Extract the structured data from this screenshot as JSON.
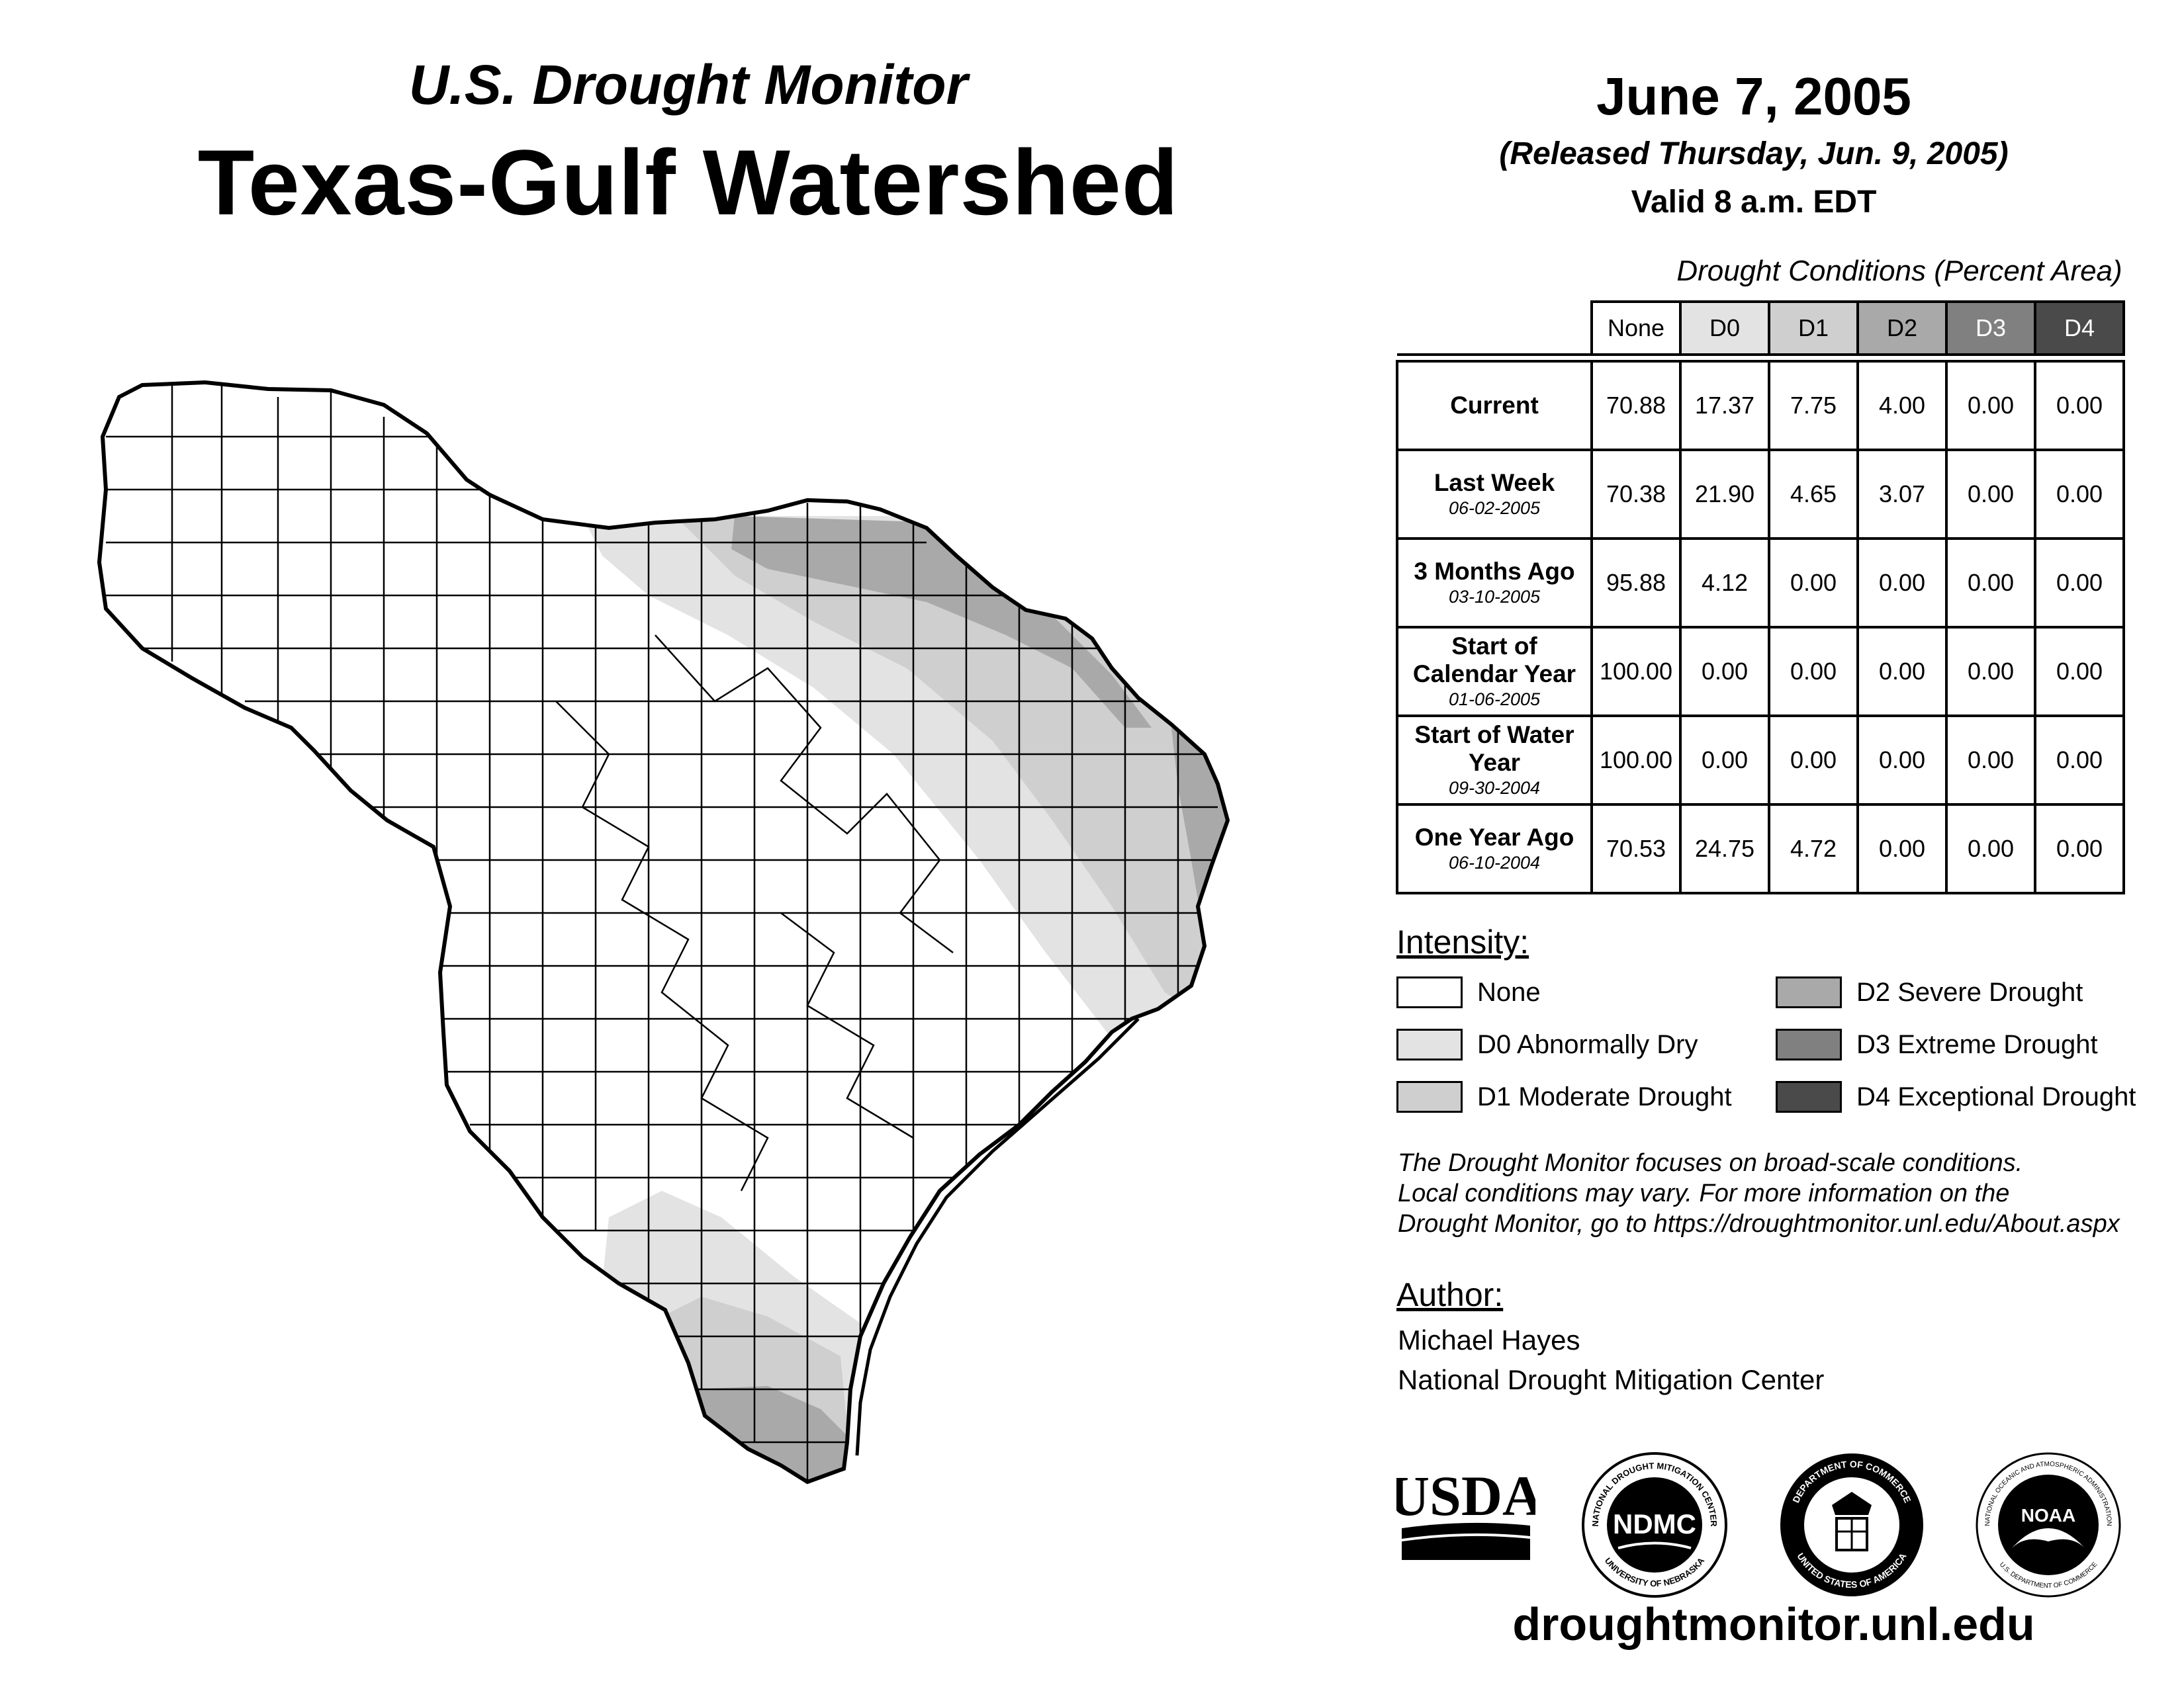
{
  "header": {
    "subtitle": "U.S. Drought Monitor",
    "title": "Texas-Gulf Watershed"
  },
  "date_block": {
    "date": "June 7, 2005",
    "released": "(Released Thursday, Jun. 9, 2005)",
    "valid": "Valid 8 a.m. EDT"
  },
  "table": {
    "caption": "Drought Conditions (Percent Area)",
    "columns": [
      "None",
      "D0",
      "D1",
      "D2",
      "D3",
      "D4"
    ],
    "column_colors": [
      "#ffffff",
      "#e3e3e3",
      "#cfcfcf",
      "#a9a9a9",
      "#808080",
      "#4a4a4a"
    ],
    "column_text_colors": [
      "#000000",
      "#000000",
      "#000000",
      "#000000",
      "#ffffff",
      "#ffffff"
    ],
    "rows": [
      {
        "label": "Current",
        "date": "",
        "values": [
          "70.88",
          "17.37",
          "7.75",
          "4.00",
          "0.00",
          "0.00"
        ]
      },
      {
        "label": "Last Week",
        "date": "06-02-2005",
        "values": [
          "70.38",
          "21.90",
          "4.65",
          "3.07",
          "0.00",
          "0.00"
        ]
      },
      {
        "label": "3 Months Ago",
        "date": "03-10-2005",
        "values": [
          "95.88",
          "4.12",
          "0.00",
          "0.00",
          "0.00",
          "0.00"
        ]
      },
      {
        "label": "Start of Calendar Year",
        "date": "01-06-2005",
        "values": [
          "100.00",
          "0.00",
          "0.00",
          "0.00",
          "0.00",
          "0.00"
        ]
      },
      {
        "label": "Start of Water Year",
        "date": "09-30-2004",
        "values": [
          "100.00",
          "0.00",
          "0.00",
          "0.00",
          "0.00",
          "0.00"
        ]
      },
      {
        "label": "One Year Ago",
        "date": "06-10-2004",
        "values": [
          "70.53",
          "24.75",
          "4.72",
          "0.00",
          "0.00",
          "0.00"
        ]
      }
    ]
  },
  "legend": {
    "title": "Intensity:",
    "items": [
      {
        "label": "None",
        "color": "#ffffff"
      },
      {
        "label": "D0 Abnormally Dry",
        "color": "#e3e3e3"
      },
      {
        "label": "D1 Moderate Drought",
        "color": "#cfcfcf"
      },
      {
        "label": "D2 Severe Drought",
        "color": "#a9a9a9"
      },
      {
        "label": "D3 Extreme Drought",
        "color": "#808080"
      },
      {
        "label": "D4 Exceptional Drought",
        "color": "#4a4a4a"
      }
    ]
  },
  "disclaimer": {
    "line1": "The Drought Monitor focuses on broad-scale conditions.",
    "line2": "Local conditions may vary. For more information on the",
    "line3": "Drought Monitor, go to https://droughtmonitor.unl.edu/About.aspx"
  },
  "author": {
    "title": "Author:",
    "name": "Michael Hayes",
    "org": "National Drought Mitigation Center"
  },
  "logos": {
    "usda": "USDA",
    "ndmc": "NDMC",
    "ndmc_ring_top": "NATIONAL DROUGHT MITIGATION CENTER",
    "ndmc_ring_bottom": "UNIVERSITY OF NEBRASKA",
    "doc_ring_top": "DEPARTMENT OF COMMERCE",
    "doc_ring_bottom": "UNITED STATES OF AMERICA",
    "noaa": "NOAA",
    "noaa_ring_top": "NATIONAL OCEANIC AND ATMOSPHERIC ADMINISTRATION",
    "noaa_ring_bottom": "U.S. DEPARTMENT OF COMMERCE"
  },
  "website": "droughtmonitor.unl.edu"
}
